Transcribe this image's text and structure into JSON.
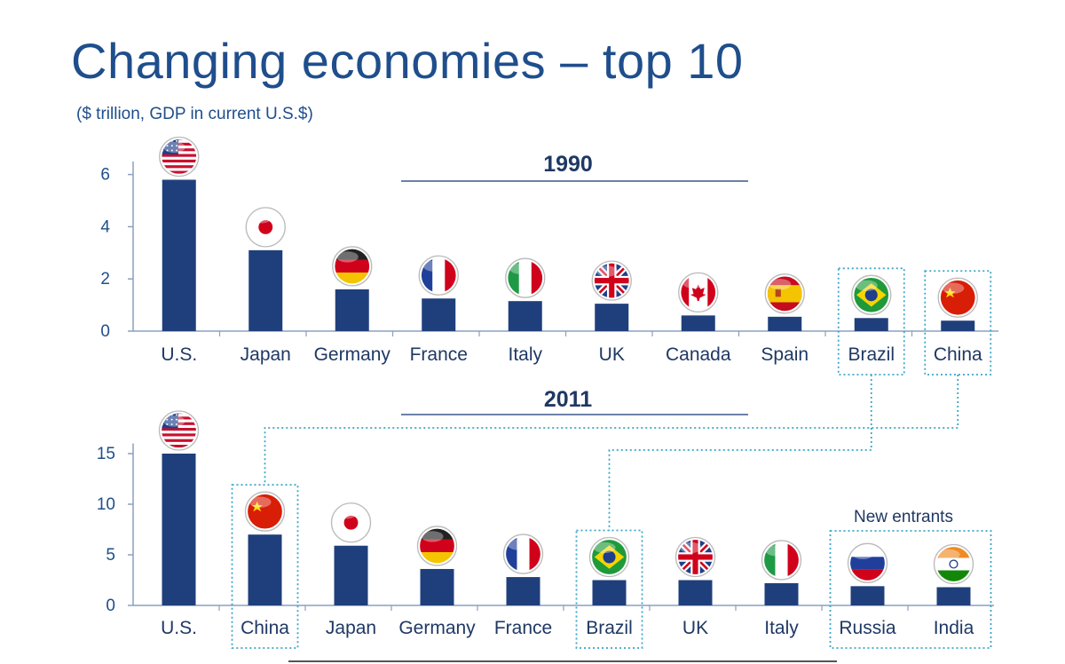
{
  "header": {
    "title": "Changing economies – top 10",
    "subtitle": "($ trillion, GDP in current U.S.$)"
  },
  "colors": {
    "bar": "#1f3f7c",
    "text": "#1f3864",
    "title": "#1f4e8c",
    "axis": "#8aa0c0",
    "highlight": "#3aa6c8"
  },
  "chart_data": [
    {
      "type": "bar",
      "title": "1990",
      "categories": [
        "U.S.",
        "Japan",
        "Germany",
        "France",
        "Italy",
        "UK",
        "Canada",
        "Spain",
        "Brazil",
        "China"
      ],
      "flags": [
        "us-flag-icon",
        "japan-flag-icon",
        "germany-flag-icon",
        "france-flag-icon",
        "italy-flag-icon",
        "uk-flag-icon",
        "canada-flag-icon",
        "spain-flag-icon",
        "brazil-flag-icon",
        "china-flag-icon"
      ],
      "values": [
        5.8,
        3.1,
        1.6,
        1.25,
        1.15,
        1.05,
        0.6,
        0.55,
        0.5,
        0.4
      ],
      "yticks": [
        0,
        2,
        4,
        6
      ],
      "ylim": [
        0,
        6.5
      ],
      "highlighted": [
        "Brazil",
        "China"
      ],
      "xlabel": "",
      "ylabel": ""
    },
    {
      "type": "bar",
      "title": "2011",
      "categories": [
        "U.S.",
        "China",
        "Japan",
        "Germany",
        "France",
        "Brazil",
        "UK",
        "Italy",
        "Russia",
        "India"
      ],
      "flags": [
        "us-flag-icon",
        "china-flag-icon",
        "japan-flag-icon",
        "germany-flag-icon",
        "france-flag-icon",
        "brazil-flag-icon",
        "uk-flag-icon",
        "italy-flag-icon",
        "russia-flag-icon",
        "india-flag-icon"
      ],
      "values": [
        15.0,
        7.0,
        5.9,
        3.6,
        2.8,
        2.5,
        2.5,
        2.2,
        1.9,
        1.8
      ],
      "yticks": [
        0,
        5,
        10,
        15
      ],
      "ylim": [
        0,
        16
      ],
      "highlighted": [
        "China",
        "Brazil",
        "Russia",
        "India"
      ],
      "annotation": "New entrants",
      "xlabel": "",
      "ylabel": ""
    }
  ]
}
